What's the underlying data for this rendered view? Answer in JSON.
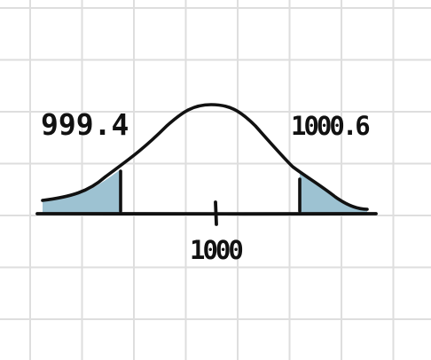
{
  "diagram": {
    "labels": {
      "left_cutoff": "999.4",
      "right_cutoff": "1000.6",
      "center": "1000"
    },
    "colors": {
      "shaded_tail": "#9dc2d2",
      "ink": "#111111",
      "grid": "#dedede"
    }
  }
}
